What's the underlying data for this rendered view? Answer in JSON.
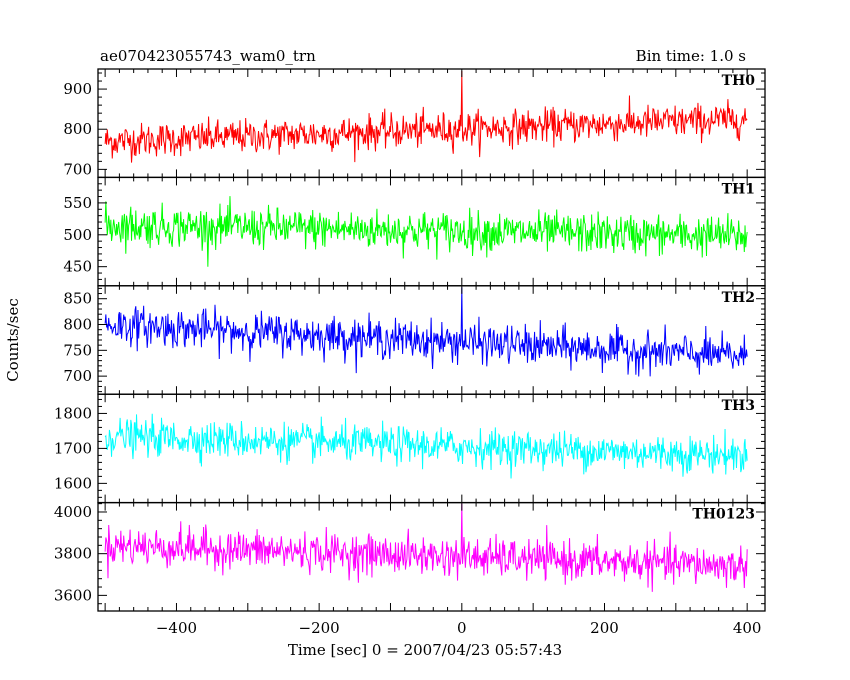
{
  "chart_data": {
    "type": "line",
    "title": "ae070423055743_wam0_trn",
    "bin_time_label": "Bin time: 1.0 s",
    "xlabel": "Time [sec] 0 = 2007/04/23 05:57:43",
    "ylabel": "Counts/sec",
    "x_range": [
      -500,
      400
    ],
    "xlim": [
      -510,
      425
    ],
    "x_ticks": [
      -400,
      -200,
      0,
      200,
      400
    ],
    "x_tick_labels": [
      "−400",
      "−200",
      "0",
      "200",
      "400"
    ],
    "panels": [
      {
        "name": "TH0",
        "color": "#ff0000",
        "ylim": [
          680,
          950
        ],
        "y_ticks": [
          700,
          800,
          900
        ],
        "y_tick_labels": [
          "700",
          "800",
          "900"
        ],
        "mean_start": 770,
        "mean_end": 825,
        "spread": 34,
        "spikes": [
          [
            0,
            945
          ]
        ]
      },
      {
        "name": "TH1",
        "color": "#00ff00",
        "ylim": [
          420,
          590
        ],
        "y_ticks": [
          450,
          500,
          550
        ],
        "y_tick_labels": [
          "450",
          "500",
          "550"
        ],
        "mean_start": 515,
        "mean_end": 498,
        "spread": 25,
        "spikes": []
      },
      {
        "name": "TH2",
        "color": "#0000ff",
        "ylim": [
          665,
          875
        ],
        "y_ticks": [
          700,
          750,
          800,
          850
        ],
        "y_tick_labels": [
          "700",
          "750",
          "800",
          "850"
        ],
        "mean_start": 800,
        "mean_end": 738,
        "spread": 30,
        "spikes": [
          [
            0,
            872
          ]
        ]
      },
      {
        "name": "TH3",
        "color": "#00ffff",
        "ylim": [
          1545,
          1855
        ],
        "y_ticks": [
          1600,
          1700,
          1800
        ],
        "y_tick_labels": [
          "1600",
          "1700",
          "1800"
        ],
        "mean_start": 1735,
        "mean_end": 1680,
        "spread": 42,
        "spikes": []
      },
      {
        "name": "TH0123",
        "color": "#ff00ff",
        "ylim": [
          3525,
          4045
        ],
        "y_ticks": [
          3600,
          3800,
          4000
        ],
        "y_tick_labels": [
          "3600",
          "3800",
          "4000"
        ],
        "mean_start": 3840,
        "mean_end": 3740,
        "spread": 75,
        "spikes": [
          [
            0,
            4040
          ]
        ]
      }
    ]
  }
}
